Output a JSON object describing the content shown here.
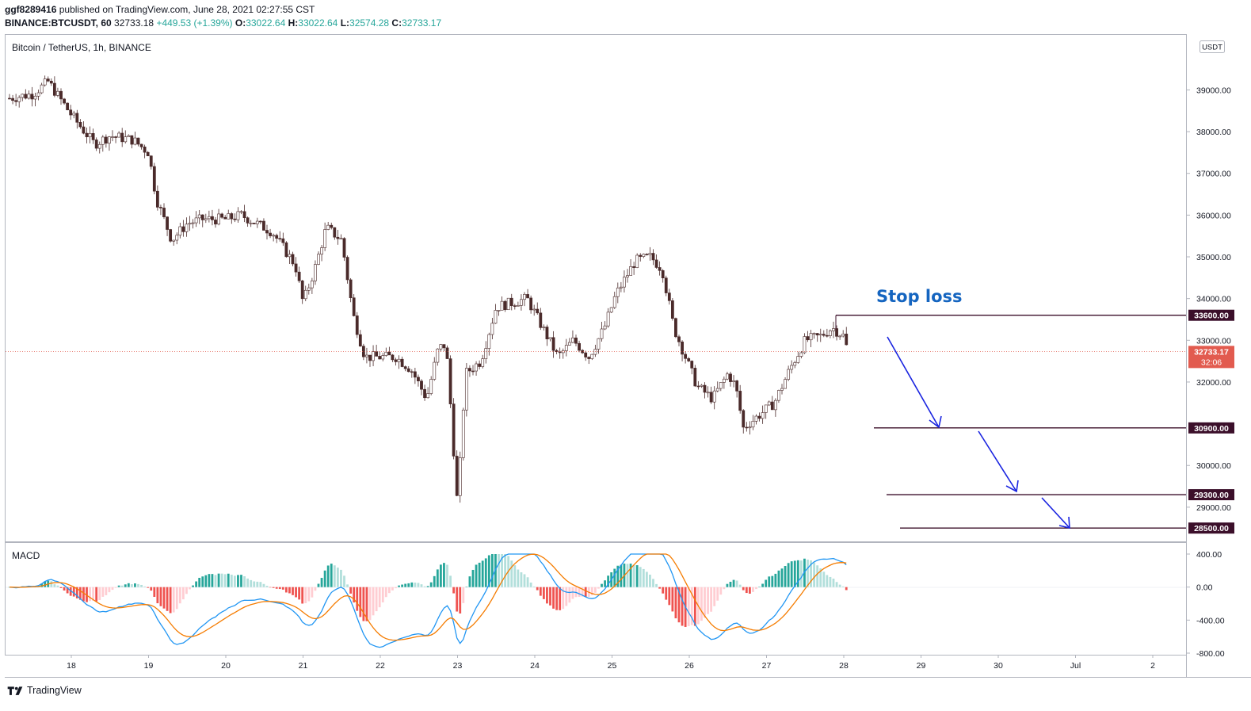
{
  "header": {
    "publisher": "ggf8289416",
    "published_text": "published on TradingView.com, June 28, 2021 02:27:55 CST",
    "symbol": "BINANCE:BTCUSDT, 60",
    "last": "32733.18",
    "change": "+449.53 (+1.39%)",
    "o_label": "O:",
    "o": "33022.64",
    "h_label": "H:",
    "h": "33022.64",
    "l_label": "L:",
    "l": "32574.28",
    "c_label": "C:",
    "c": "32733.17"
  },
  "footer": {
    "brand": "TradingView"
  },
  "colors": {
    "up": "#26a69a",
    "down": "#ef5350",
    "candle_body": "#4a2a2a",
    "macd": "#2196f3",
    "signal": "#f57c00",
    "level": "#3b0f2a",
    "arrow": "#1a24e0",
    "last_price": "#e25b4f"
  },
  "chart_data": {
    "type": "candlestick",
    "title": "Bitcoin / TetherUS, 1h, BINANCE",
    "currency_badge": "USDT",
    "price_axis": {
      "ylim": [
        28200,
        40300
      ],
      "ticks": [
        "39000.00",
        "38000.00",
        "37000.00",
        "36000.00",
        "35000.00",
        "34000.00",
        "33000.00",
        "32000.00",
        "30000.00",
        "29000.00"
      ]
    },
    "x_axis": {
      "ticks": [
        "18",
        "19",
        "20",
        "21",
        "22",
        "23",
        "24",
        "25",
        "26",
        "27",
        "28",
        "29",
        "30",
        "Jul",
        "2"
      ]
    },
    "last_price": {
      "value": "32733.17",
      "countdown": "32:06"
    },
    "annotations": {
      "stop_loss_label": "Stop loss",
      "levels": [
        {
          "value": 33600,
          "label": "33600.00"
        },
        {
          "value": 30900,
          "label": "30900.00"
        },
        {
          "value": 29300,
          "label": "29300.00"
        },
        {
          "value": 28500,
          "label": "28500.00"
        }
      ]
    },
    "series": [
      {
        "name": "BTCUSDT close (approx.)",
        "days": [
          17.2,
          17.5,
          17.7,
          18.0,
          18.3,
          18.5,
          18.8,
          19.0,
          19.1,
          19.3,
          19.5,
          19.7,
          20.0,
          20.2,
          20.4,
          20.6,
          20.9,
          21.0,
          21.15,
          21.3,
          21.5,
          21.65,
          21.8,
          22.0,
          22.2,
          22.4,
          22.6,
          22.75,
          22.85,
          22.9,
          23.0,
          23.1,
          23.3,
          23.5,
          23.7,
          23.9,
          24.1,
          24.3,
          24.5,
          24.7,
          24.9,
          25.05,
          25.3,
          25.5,
          25.65,
          25.8,
          25.95,
          26.1,
          26.3,
          26.5,
          26.6,
          26.7,
          26.9,
          27.1,
          27.3,
          27.5,
          27.7,
          27.85,
          28.0,
          28.05
        ],
        "close": [
          38800,
          38900,
          39200,
          38400,
          37700,
          37900,
          37800,
          37500,
          36400,
          35400,
          35800,
          35900,
          35900,
          36000,
          35800,
          35600,
          34800,
          33900,
          34700,
          35700,
          35400,
          33600,
          32600,
          32600,
          32600,
          32300,
          31600,
          32800,
          32900,
          31700,
          29000,
          32200,
          32500,
          33800,
          33900,
          34000,
          33300,
          32600,
          33000,
          32600,
          33300,
          34100,
          34900,
          35000,
          34700,
          33300,
          32600,
          31900,
          31600,
          32200,
          31900,
          30900,
          31200,
          31500,
          32300,
          33000,
          33100,
          33300,
          33100,
          32733
        ]
      },
      {
        "name": "MACD",
        "ylim": [
          -800,
          400
        ],
        "ticks": [
          "400.00",
          "0.00",
          "-400.00",
          "-800.00"
        ]
      }
    ]
  }
}
